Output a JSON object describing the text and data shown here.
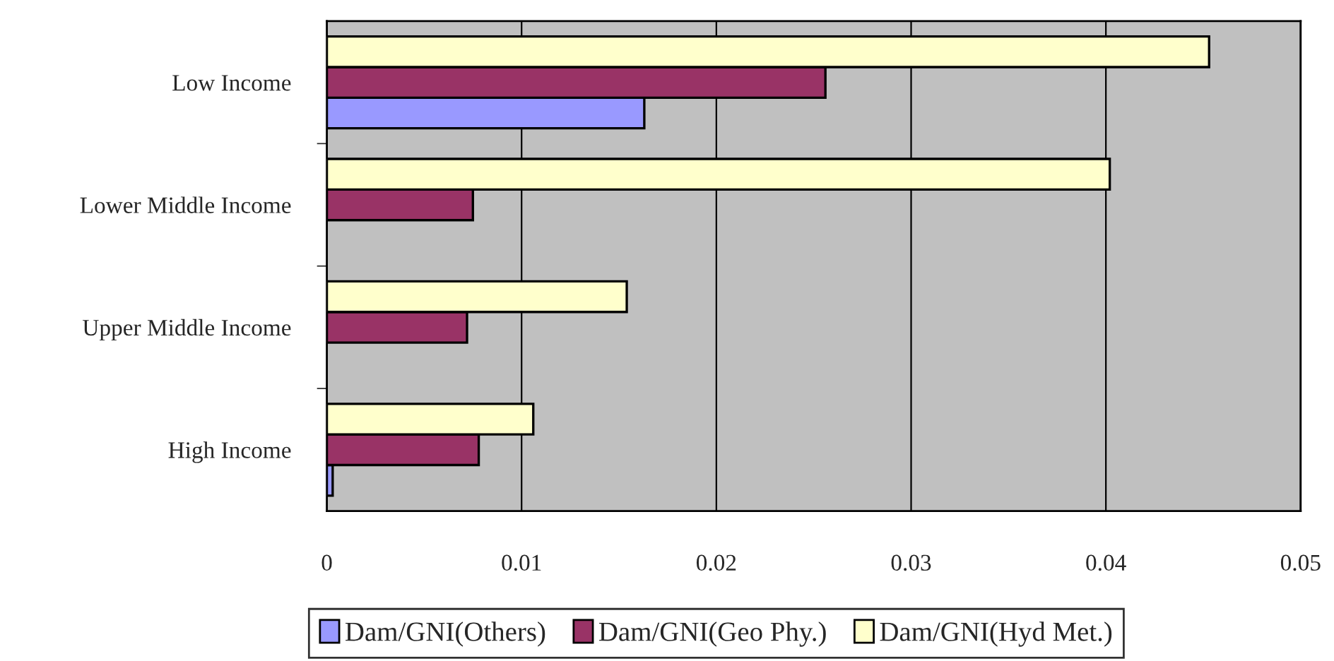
{
  "chart_data": {
    "type": "bar",
    "orientation": "horizontal",
    "categories": [
      "Low Income",
      "Lower Middle Income",
      "Upper Middle Income",
      "High Income"
    ],
    "series": [
      {
        "name": "Dam/GNI(Others)",
        "color": "#9999ff",
        "values": [
          0.0163,
          null,
          null,
          0.0003
        ]
      },
      {
        "name": "Dam/GNI(Geo Phy.)",
        "color": "#993366",
        "values": [
          0.0256,
          0.0075,
          0.0072,
          0.0078
        ]
      },
      {
        "name": "Dam/GNI(Hyd Met.)",
        "color": "#ffffcc",
        "values": [
          0.0453,
          0.0402,
          0.0154,
          0.0106
        ]
      }
    ],
    "xlim": [
      0,
      0.05
    ],
    "xticks": [
      0,
      0.01,
      0.02,
      0.03,
      0.04,
      0.05
    ],
    "grid": "x",
    "legend": "bottom"
  }
}
